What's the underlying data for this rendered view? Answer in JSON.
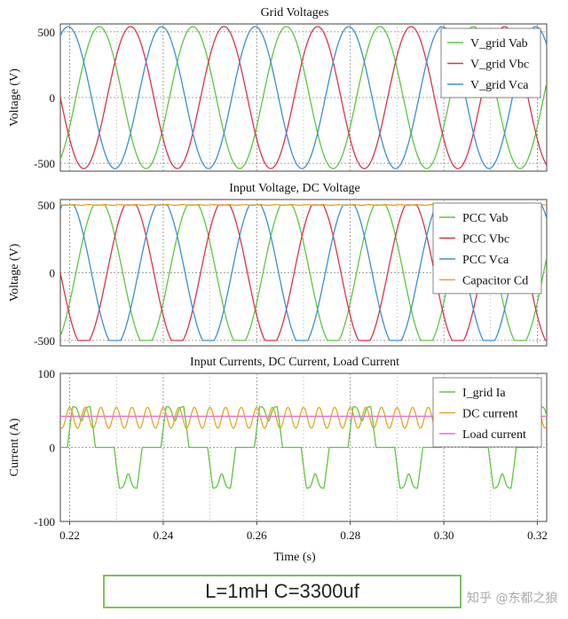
{
  "caption": "L=1mH C=3300uf",
  "watermark": "知乎 @东都之狼",
  "colors": {
    "green": "#5ac83c",
    "red": "#e0314b",
    "blue": "#3a8fd6",
    "orange": "#e8a520",
    "pink": "#f06ad8",
    "grid": "#888888"
  },
  "chart_data": [
    {
      "type": "line",
      "title": "Grid Voltages",
      "ylabel": "Voltage (V)",
      "xlim": [
        0.218,
        0.322
      ],
      "ylim": [
        -560,
        560
      ],
      "yticks": [
        -500,
        0,
        500
      ],
      "grid": true,
      "legend_position": "top-right",
      "series": [
        {
          "name": "V_grid Vab",
          "color": "green",
          "model": "sine",
          "amplitude": 540,
          "freq_hz": 50,
          "phase_deg": -24
        },
        {
          "name": "V_grid Vbc",
          "color": "red",
          "model": "sine",
          "amplitude": 540,
          "freq_hz": 50,
          "phase_deg": -144
        },
        {
          "name": "V_grid Vca",
          "color": "blue",
          "model": "sine",
          "amplitude": 540,
          "freq_hz": 50,
          "phase_deg": 96
        }
      ]
    },
    {
      "type": "line",
      "title": "Input Voltage, DC Voltage",
      "ylabel": "Voltage (V)",
      "xlim": [
        0.218,
        0.322
      ],
      "ylim": [
        -540,
        540
      ],
      "yticks": [
        -500,
        0,
        500
      ],
      "grid": true,
      "legend_position": "top-right",
      "series": [
        {
          "name": "PCC Vab",
          "color": "green",
          "model": "clipped-sine",
          "amplitude": 540,
          "clip": 500,
          "freq_hz": 50,
          "phase_deg": -24
        },
        {
          "name": "PCC Vbc",
          "color": "red",
          "model": "clipped-sine",
          "amplitude": 540,
          "clip": 500,
          "freq_hz": 50,
          "phase_deg": -144
        },
        {
          "name": "PCC Vca",
          "color": "blue",
          "model": "clipped-sine",
          "amplitude": 540,
          "clip": 500,
          "freq_hz": 50,
          "phase_deg": 96
        },
        {
          "name": "Capacitor Cd",
          "color": "orange",
          "model": "dc-ripple",
          "mean": 500,
          "ripple": 3
        }
      ]
    },
    {
      "type": "line",
      "title": "Input Currents, DC Current, Load Current",
      "ylabel": "Current (A)",
      "xlabel": "Time (s)",
      "xlim": [
        0.218,
        0.322
      ],
      "ylim": [
        -100,
        100
      ],
      "yticks": [
        -100,
        0,
        100
      ],
      "xticks": [
        0.22,
        0.24,
        0.26,
        0.28,
        0.3,
        0.32
      ],
      "xtick_labels": [
        "0.22",
        "0.24",
        "0.26",
        "0.28",
        "0.30",
        "0.32"
      ],
      "grid": true,
      "legend_position": "top-right",
      "series": [
        {
          "name": "I_grid Ia",
          "color": "green",
          "model": "pulse-current",
          "peak": 55,
          "freq_hz": 50
        },
        {
          "name": "DC current",
          "color": "orange",
          "model": "rippled-dc",
          "mean": 40,
          "ripple": 14,
          "freq_hz": 300
        },
        {
          "name": "Load current",
          "color": "pink",
          "model": "constant",
          "value": 42
        }
      ]
    }
  ]
}
